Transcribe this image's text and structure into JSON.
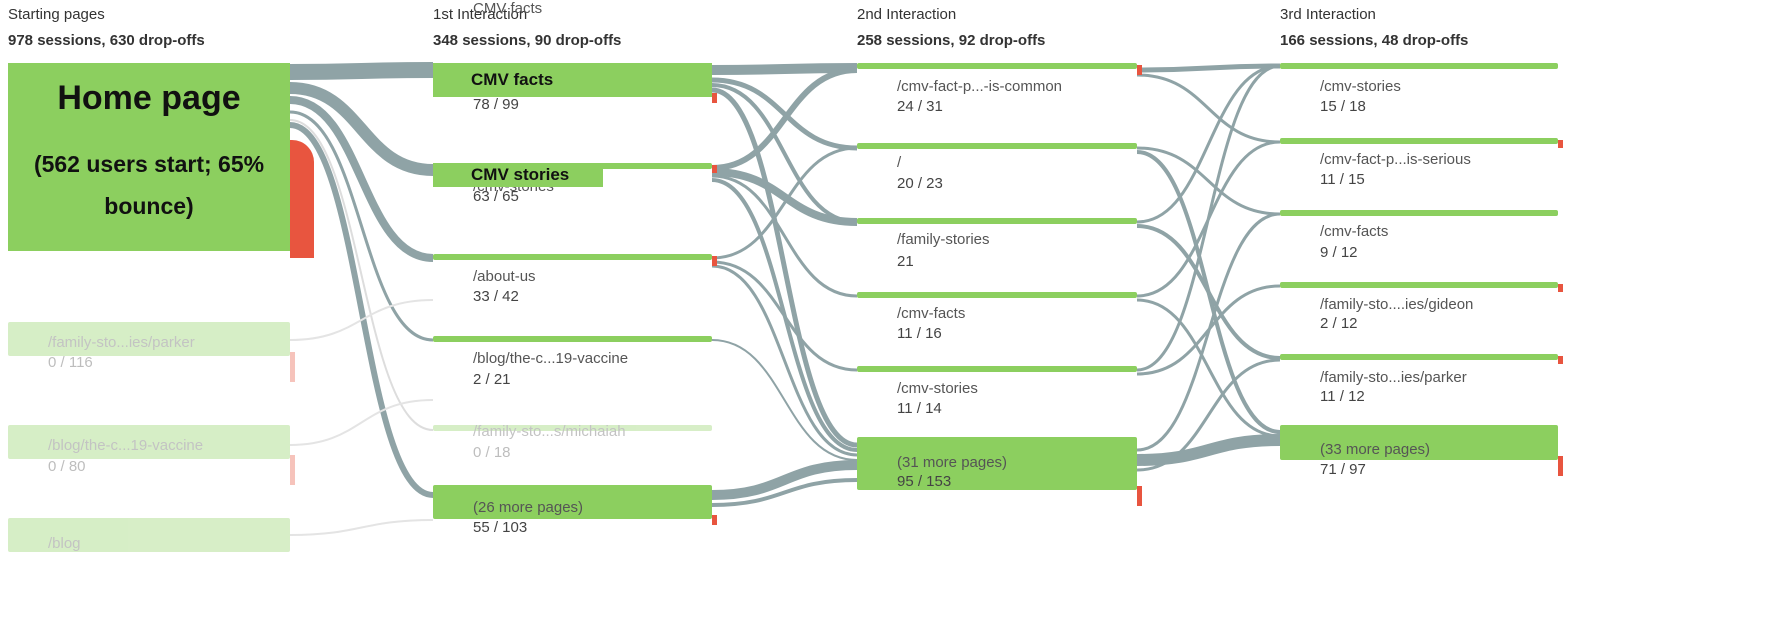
{
  "columns": [
    {
      "title": "Starting pages",
      "subtitle": "978 sessions, 630 drop-offs",
      "nodes": [
        {
          "label": "Home page",
          "note": "(562 users start; 65% bounce)"
        },
        {
          "label": "/family-sto...ies/parker",
          "stats": "0 / 116"
        },
        {
          "label": "/blog/the-c...19-vaccine",
          "stats": "0 / 80"
        },
        {
          "label": "/blog"
        }
      ]
    },
    {
      "title": "1st Interaction",
      "subtitle": "348 sessions, 90 drop-offs",
      "nodes": [
        {
          "label": "CMV facts",
          "stats": "78 / 99"
        },
        {
          "label": "/cmv-stories",
          "overlay": "CMV stories",
          "stats": "63 / 65"
        },
        {
          "label": "/about-us",
          "stats": "33 / 42"
        },
        {
          "label": "/blog/the-c...19-vaccine",
          "stats": "2 / 21"
        },
        {
          "label": "/family-sto...s/michaiah",
          "stats": "0 / 18"
        },
        {
          "label": "(26 more pages)",
          "stats": "55 / 103"
        }
      ]
    },
    {
      "title": "2nd Interaction",
      "subtitle": "258 sessions, 92 drop-offs",
      "nodes": [
        {
          "label": "/cmv-fact-p...-is-common",
          "stats": "24 / 31"
        },
        {
          "label": "/",
          "stats": "20 / 23"
        },
        {
          "label": "/family-stories",
          "stats": "21"
        },
        {
          "label": "/cmv-facts",
          "stats": "11 / 16"
        },
        {
          "label": "/cmv-stories",
          "stats": "11 / 14"
        },
        {
          "label": "(31 more pages)",
          "stats": "95 / 153"
        }
      ]
    },
    {
      "title": "3rd Interaction",
      "subtitle": "166 sessions, 48 drop-offs",
      "nodes": [
        {
          "label": "/cmv-stories",
          "stats": "15 / 18"
        },
        {
          "label": "/cmv-fact-p...is-serious",
          "stats": "11 / 15"
        },
        {
          "label": "/cmv-facts",
          "stats": "9 / 12"
        },
        {
          "label": "/family-sto....ies/gideon",
          "stats": "2 / 12"
        },
        {
          "label": "/family-sto...ies/parker",
          "stats": "11 / 12"
        },
        {
          "label": "(33 more pages)",
          "stats": "71 / 97"
        }
      ]
    }
  ]
}
